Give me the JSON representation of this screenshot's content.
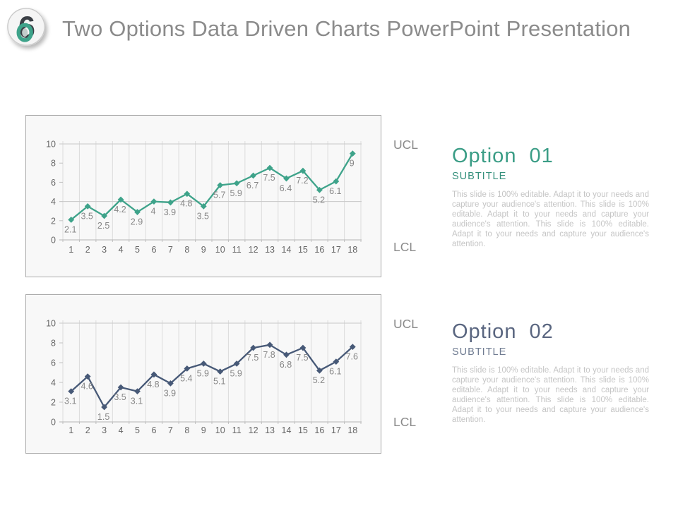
{
  "header": {
    "logo_number": "6",
    "title": "Two Options Data Driven Charts PowerPoint Presentation"
  },
  "options": [
    {
      "title": "Option  01",
      "subtitle": "SUBTITLE",
      "body": "This slide is 100% editable. Adapt it to your needs and capture your audience's attention. This slide is 100% editable. Adapt it to your needs and capture your audience's attention. This slide is 100% editable. Adapt it to your needs and capture your audience's attention.",
      "accent_color": "#3B9D86",
      "subtitle_color": "#35907C",
      "ucl_label": "UCL",
      "lcl_label": "LCL"
    },
    {
      "title": "Option  02",
      "subtitle": "SUBTITLE",
      "body": "This slide is 100% editable. Adapt it to your needs and capture your audience's attention. This slide is 100% editable. Adapt it to your needs and capture your audience's attention. This slide is 100% editable. Adapt it to your needs and capture your audience's attention.",
      "accent_color": "#5A6680",
      "subtitle_color": "#707C92",
      "ucl_label": "UCL",
      "lcl_label": "LCL"
    }
  ],
  "chart_data": [
    {
      "type": "line",
      "title": "Option 01 control chart",
      "x": [
        1,
        2,
        3,
        4,
        5,
        6,
        7,
        8,
        9,
        10,
        11,
        12,
        13,
        14,
        15,
        16,
        17,
        18
      ],
      "values": [
        2.1,
        3.5,
        2.5,
        4.2,
        2.9,
        4,
        3.9,
        4.8,
        3.5,
        5.7,
        5.9,
        6.7,
        7.5,
        6.4,
        7.2,
        5.2,
        6.1,
        9
      ],
      "ylim": [
        0,
        10
      ],
      "y_ticks": [
        0,
        2,
        4,
        6,
        8,
        10
      ],
      "ref_lines": [
        10,
        4
      ],
      "ref_line_labels": [
        "UCL",
        "LCL"
      ],
      "line_color": "#3EA38A",
      "marker": "diamond",
      "data_labels": true,
      "grid": "vertical",
      "legend": "none"
    },
    {
      "type": "line",
      "title": "Option 02 control chart",
      "x": [
        1,
        2,
        3,
        4,
        5,
        6,
        7,
        8,
        9,
        10,
        11,
        12,
        13,
        14,
        15,
        16,
        17,
        18
      ],
      "values": [
        3.1,
        4.6,
        1.5,
        3.5,
        3.1,
        4.8,
        3.9,
        5.4,
        5.9,
        5.1,
        5.9,
        7.5,
        7.8,
        6.8,
        7.5,
        5.2,
        6.1,
        7.6
      ],
      "ylim": [
        0,
        10
      ],
      "y_ticks": [
        0,
        2,
        4,
        6,
        8,
        10
      ],
      "ref_lines": [
        10
      ],
      "ref_line_labels": [
        "UCL"
      ],
      "line_color": "#475977",
      "marker": "diamond",
      "data_labels": true,
      "grid": "vertical",
      "legend": "none"
    }
  ]
}
